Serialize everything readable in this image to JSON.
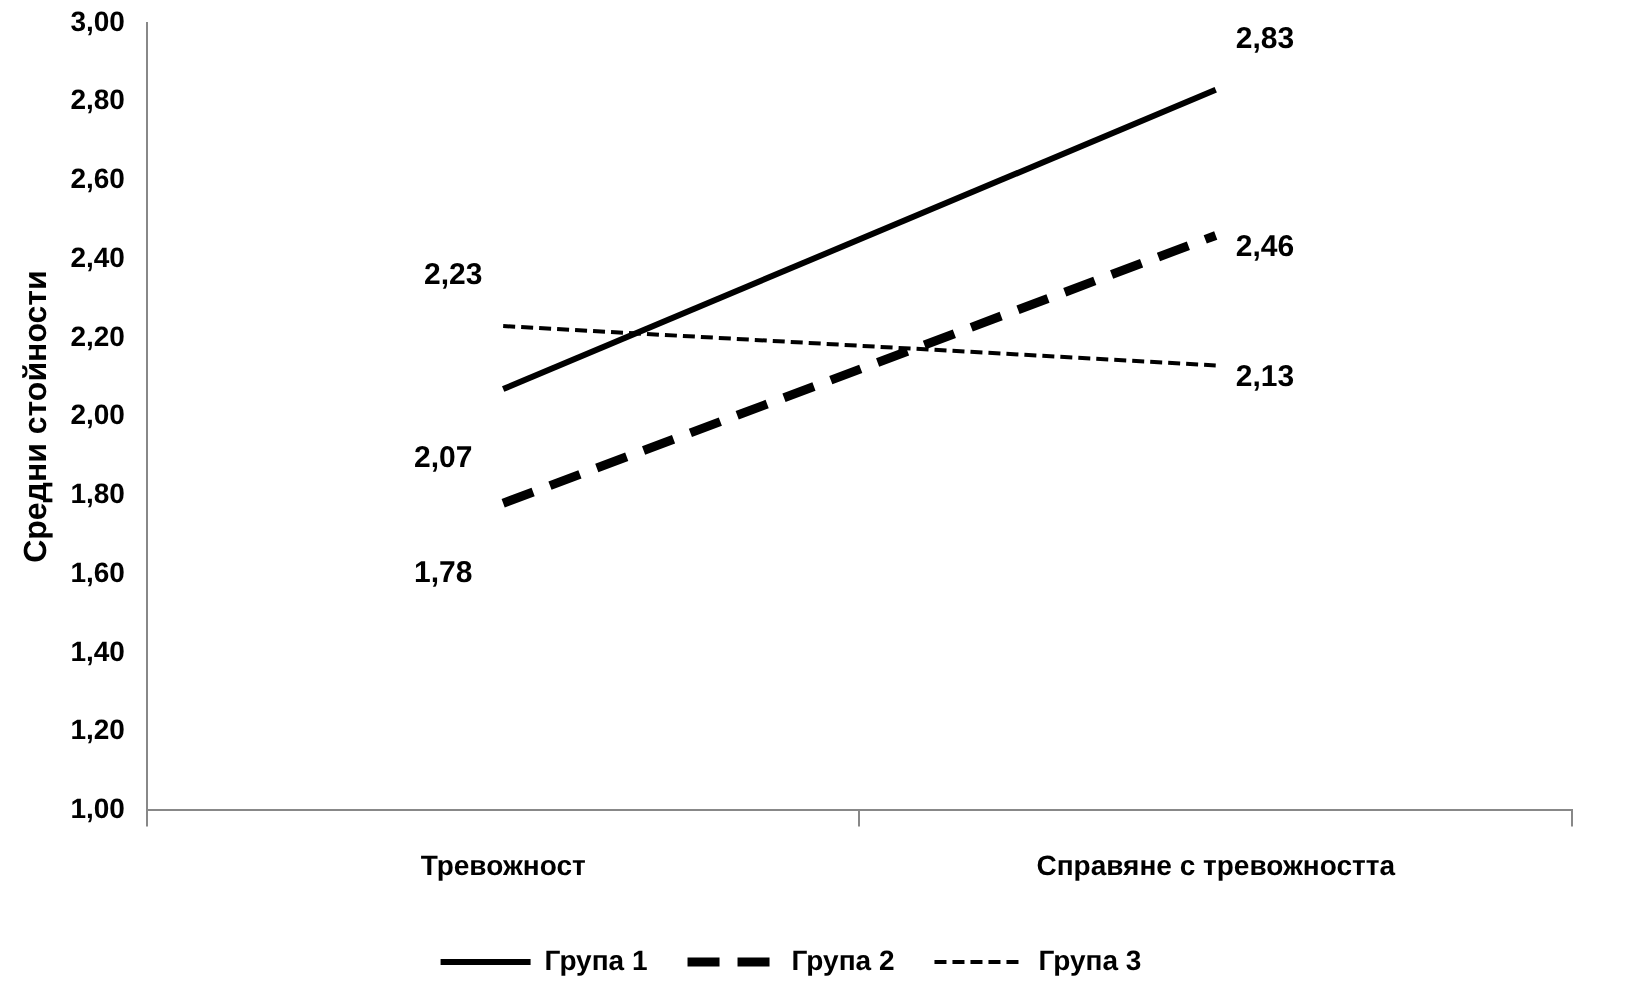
{
  "chart_data": {
    "type": "line",
    "ylabel": "Средни стойности",
    "categories": [
      "Тревожност",
      "Справяне с тревожността"
    ],
    "series": [
      {
        "name": "Група 1",
        "color": "#000000",
        "line_style": "solid",
        "values": [
          2.07,
          2.83
        ],
        "value_labels": [
          "2,07",
          "2,83"
        ]
      },
      {
        "name": "Група 2",
        "color": "#000000",
        "line_style": "dashed",
        "values": [
          1.78,
          2.46
        ],
        "value_labels": [
          "1,78",
          "2,46"
        ]
      },
      {
        "name": "Група 3",
        "color": "#000000",
        "line_style": "dotted",
        "values": [
          2.23,
          2.13
        ],
        "value_labels": [
          "2,23",
          "2,13"
        ]
      }
    ],
    "ylim": [
      1,
      3
    ],
    "yticks": [
      {
        "value": 1,
        "label": "1,00"
      },
      {
        "value": 1.2,
        "label": "1,20"
      },
      {
        "value": 1.4,
        "label": "1,40"
      },
      {
        "value": 1.6,
        "label": "1,60"
      },
      {
        "value": 1.8,
        "label": "1,80"
      },
      {
        "value": 2,
        "label": "2,00"
      },
      {
        "value": 2.2,
        "label": "2,20"
      },
      {
        "value": 2.4,
        "label": "2,40"
      },
      {
        "value": 2.6,
        "label": "2,60"
      },
      {
        "value": 2.8,
        "label": "2,80"
      },
      {
        "value": 3,
        "label": "3,00"
      }
    ],
    "grid": false,
    "legend": "bottom",
    "marker": "none"
  }
}
